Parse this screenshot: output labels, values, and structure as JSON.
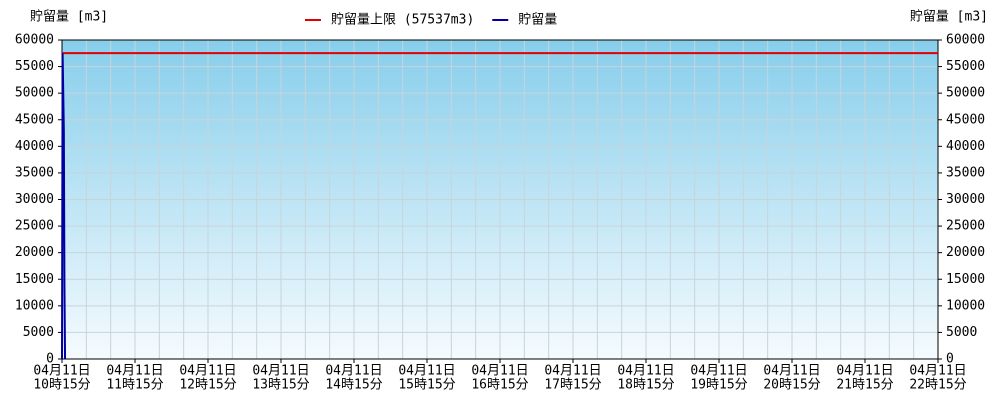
{
  "chart_data": {
    "type": "line",
    "y_label": "貯留量 [m3]",
    "y2_label": "貯留量 [m3]",
    "xlim": [
      0,
      720
    ],
    "xticks": [
      {
        "value": 0,
        "label": [
          "04月11日",
          "10時15分"
        ]
      },
      {
        "value": 60,
        "label": [
          "04月11日",
          "11時15分"
        ]
      },
      {
        "value": 120,
        "label": [
          "04月11日",
          "12時15分"
        ]
      },
      {
        "value": 180,
        "label": [
          "04月11日",
          "13時15分"
        ]
      },
      {
        "value": 240,
        "label": [
          "04月11日",
          "14時15分"
        ]
      },
      {
        "value": 300,
        "label": [
          "04月11日",
          "15時15分"
        ]
      },
      {
        "value": 360,
        "label": [
          "04月11日",
          "16時15分"
        ]
      },
      {
        "value": 420,
        "label": [
          "04月11日",
          "17時15分"
        ]
      },
      {
        "value": 480,
        "label": [
          "04月11日",
          "18時15分"
        ]
      },
      {
        "value": 540,
        "label": [
          "04月11日",
          "19時15分"
        ]
      },
      {
        "value": 600,
        "label": [
          "04月11日",
          "20時15分"
        ]
      },
      {
        "value": 660,
        "label": [
          "04月11日",
          "21時15分"
        ]
      },
      {
        "value": 720,
        "label": [
          "04月11日",
          "22時15分"
        ]
      }
    ],
    "xgrid": [
      0,
      20,
      40,
      60,
      80,
      100,
      120,
      140,
      160,
      180,
      200,
      220,
      240,
      260,
      280,
      300,
      320,
      340,
      360,
      380,
      400,
      420,
      440,
      460,
      480,
      500,
      520,
      540,
      560,
      580,
      600,
      620,
      640,
      660,
      680,
      700,
      720
    ],
    "ylim": [
      0,
      60000
    ],
    "yticks": [
      0,
      5000,
      10000,
      15000,
      20000,
      25000,
      30000,
      35000,
      40000,
      45000,
      50000,
      55000,
      60000
    ],
    "y2lim": [
      0,
      60000
    ],
    "y2ticks": [
      0,
      5000,
      10000,
      15000,
      20000,
      25000,
      30000,
      35000,
      40000,
      45000,
      50000,
      55000,
      60000
    ],
    "grid": true,
    "series": [
      {
        "name": "貯留量上限 (57537m3)",
        "color": "#e00000",
        "x": [
          0,
          720
        ],
        "values": [
          57537,
          57537
        ]
      },
      {
        "name": "貯留量",
        "color": "#0000a0",
        "x": [
          0,
          0.5,
          1.5,
          2,
          2.5
        ],
        "values": [
          0,
          57500,
          43000,
          14000,
          0
        ]
      }
    ]
  }
}
